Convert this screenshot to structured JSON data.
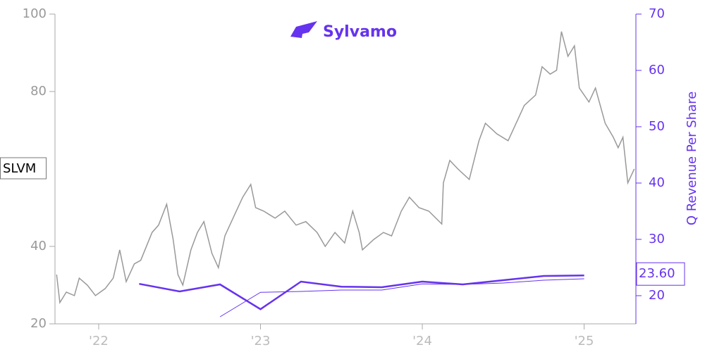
{
  "chart_data": {
    "type": "line",
    "title": "Sylvamo",
    "y2_label": "Q Revenue Per Share",
    "xlim": [
      2021.73,
      2025.32
    ],
    "xticks": [
      {
        "value": 2022,
        "label": "'22"
      },
      {
        "value": 2023,
        "label": "'23"
      },
      {
        "value": 2024,
        "label": "'24"
      },
      {
        "value": 2025,
        "label": "'25"
      }
    ],
    "ylim": [
      20,
      100
    ],
    "yticks": [
      20,
      40,
      80,
      100
    ],
    "y2lim": [
      15,
      70
    ],
    "y2ticks": [
      20,
      30,
      40,
      50,
      60,
      70
    ],
    "series": [
      {
        "name": "SLVM",
        "color": "#999999",
        "axis": "y",
        "width": 1.5,
        "x": [
          2021.74,
          2021.76,
          2021.8,
          2021.85,
          2021.88,
          2021.93,
          2021.98,
          2022.04,
          2022.09,
          2022.13,
          2022.17,
          2022.22,
          2022.26,
          2022.33,
          2022.37,
          2022.42,
          2022.46,
          2022.49,
          2022.52,
          2022.57,
          2022.61,
          2022.65,
          2022.7,
          2022.74,
          2022.78,
          2022.84,
          2022.89,
          2022.94,
          2022.97,
          2023.02,
          2023.09,
          2023.15,
          2023.22,
          2023.28,
          2023.35,
          2023.4,
          2023.46,
          2023.52,
          2023.57,
          2023.61,
          2023.63,
          2023.7,
          2023.76,
          2023.81,
          2023.87,
          2023.92,
          2023.98,
          2024.04,
          2024.12,
          2024.13,
          2024.17,
          2024.22,
          2024.29,
          2024.35,
          2024.39,
          2024.46,
          2024.53,
          2024.59,
          2024.63,
          2024.7,
          2024.74,
          2024.79,
          2024.83,
          2024.86,
          2024.9,
          2024.94,
          2024.97,
          2025.03,
          2025.07,
          2025.13,
          2025.18,
          2025.21,
          2025.24,
          2025.27,
          2025.31
        ],
        "values": [
          32.7,
          25.5,
          28.2,
          27.3,
          31.8,
          30,
          27.3,
          29.1,
          31.8,
          39.1,
          30.9,
          35.5,
          36.4,
          43.6,
          45.5,
          50.9,
          41.8,
          32.7,
          30,
          39.1,
          43.6,
          46.4,
          38.2,
          34.5,
          42.7,
          48.2,
          52.7,
          56,
          50,
          49.1,
          47.3,
          49.1,
          45.5,
          46.4,
          43.6,
          40,
          43.6,
          40.9,
          49.1,
          43.6,
          39.1,
          41.8,
          43.6,
          42.7,
          49.1,
          52.7,
          50,
          49.1,
          45.8,
          56.4,
          62.2,
          60,
          57.3,
          67.3,
          71.8,
          69.1,
          67.3,
          72.7,
          76.4,
          79.1,
          86.4,
          84.5,
          85.5,
          95.5,
          89.1,
          91.8,
          80.9,
          77.3,
          80.9,
          71.8,
          68.2,
          65.5,
          68.2,
          56.4,
          60
        ]
      },
      {
        "color": "#6633ee",
        "axis": "y2",
        "width": 2.5,
        "x": [
          2022.25,
          2022.5,
          2022.75,
          2023.0,
          2023.25,
          2023.5,
          2023.75,
          2024.0,
          2024.25,
          2024.5,
          2024.75,
          2025.0
        ],
        "values": [
          22.1,
          20.75,
          22,
          17.6,
          22.5,
          21.6,
          21.5,
          22.5,
          22,
          22.75,
          23.5,
          23.6
        ],
        "value_labels": [
          null,
          null,
          null,
          null,
          null,
          null,
          null,
          null,
          null,
          null,
          null,
          "23.60"
        ]
      },
      {
        "color": "#6633ee",
        "axis": "y2",
        "width": 1,
        "x": [
          2022.75,
          2023.0,
          2023.25,
          2023.5,
          2023.75,
          2024.0,
          2024.25,
          2024.5,
          2024.75,
          2025.0
        ],
        "values": [
          16.25,
          20.6,
          20.75,
          21,
          21,
          22.1,
          22,
          22.25,
          22.75,
          23
        ]
      }
    ]
  }
}
